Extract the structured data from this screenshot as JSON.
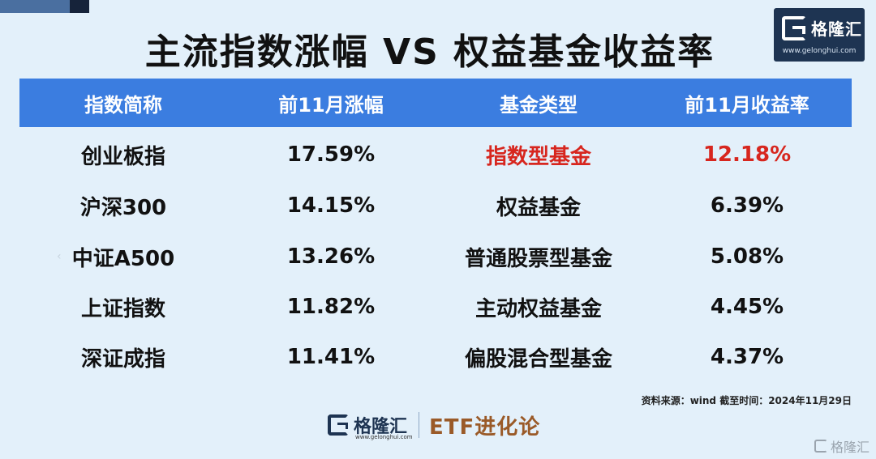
{
  "title": "主流指数涨幅 VS 权益基金收益率",
  "logo": {
    "text": "格隆汇",
    "url": "www.gelonghui.com",
    "icon": "gelonghui-logo-icon"
  },
  "table": {
    "headers": [
      "指数简称",
      "前11月涨幅",
      "基金类型",
      "前11月收益率"
    ],
    "rows": [
      {
        "index_name": "创业板指",
        "index_gain": "17.59%",
        "fund_type": "指数型基金",
        "fund_return": "12.18%",
        "highlight": true
      },
      {
        "index_name": "沪深300",
        "index_gain": "14.15%",
        "fund_type": "权益基金",
        "fund_return": "6.39%",
        "highlight": false
      },
      {
        "index_name": "中证A500",
        "index_gain": "13.26%",
        "fund_type": "普通股票型基金",
        "fund_return": "5.08%",
        "highlight": false
      },
      {
        "index_name": "上证指数",
        "index_gain": "11.82%",
        "fund_type": "主动权益基金",
        "fund_return": "4.45%",
        "highlight": false
      },
      {
        "index_name": "深证成指",
        "index_gain": "11.41%",
        "fund_type": "偏股混合型基金",
        "fund_return": "4.37%",
        "highlight": false
      }
    ]
  },
  "source_note": "资料来源：wind   截至时间：2024年11月29日",
  "footer": {
    "logo_text": "格隆汇",
    "logo_url": "www.gelonghui.com",
    "column_name": "ETF进化论"
  },
  "watermark": {
    "text": "格隆汇"
  },
  "colors": {
    "header_bg": "#3b7de0",
    "highlight": "#d7261e",
    "background": "#e3f0fa",
    "logo_bg": "#1e3452",
    "etf_brown": "#9a5a28"
  }
}
